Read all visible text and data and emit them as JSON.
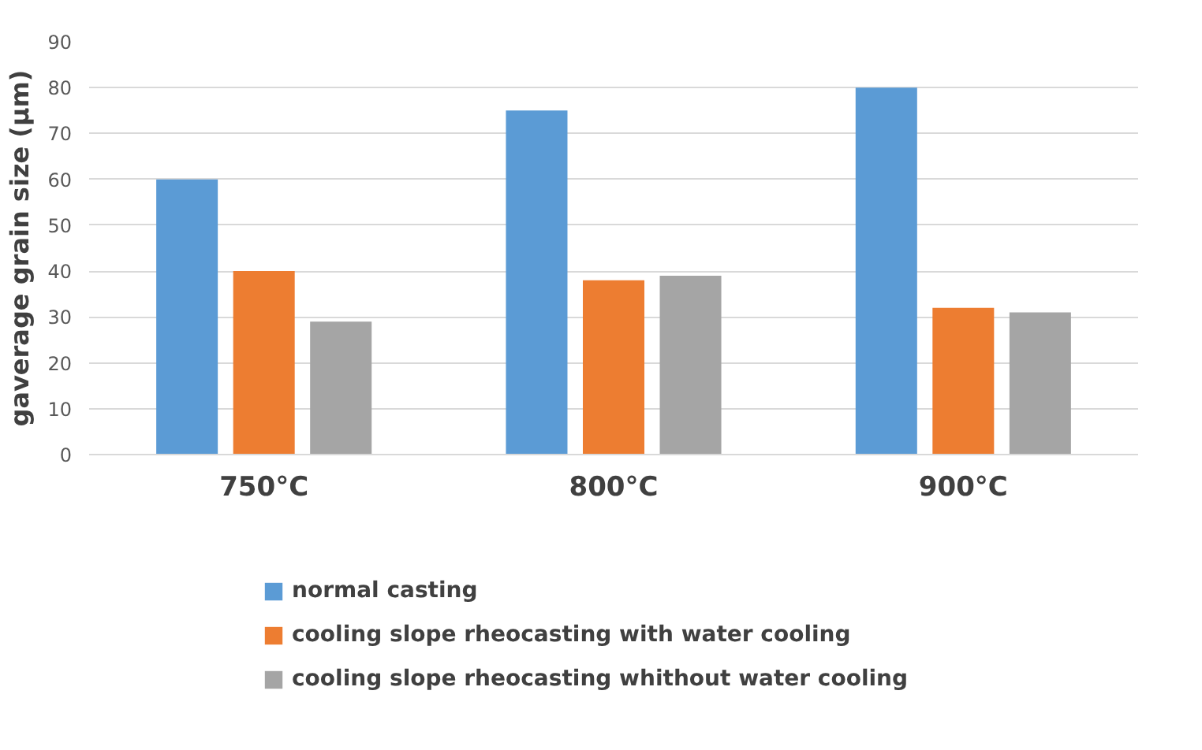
{
  "chart_data": {
    "type": "bar",
    "ylabel": "gaverage grain size (µm)",
    "categories": [
      "750°C",
      "800°C",
      "900°C"
    ],
    "series": [
      {
        "name": "normal casting",
        "color": "#5b9bd5",
        "values": [
          60,
          75,
          80
        ]
      },
      {
        "name": "cooling slope rheocasting with water cooling",
        "color": "#ed7d31",
        "values": [
          40,
          38,
          32
        ]
      },
      {
        "name": "cooling slope rheocasting whithout water cooling",
        "color": "#a5a5a5",
        "values": [
          29,
          39,
          31
        ]
      }
    ],
    "ylim": [
      0,
      90
    ],
    "yticks": [
      0,
      10,
      20,
      30,
      40,
      50,
      60,
      70,
      80,
      90
    ],
    "grid": "y",
    "legend": "bottom"
  }
}
